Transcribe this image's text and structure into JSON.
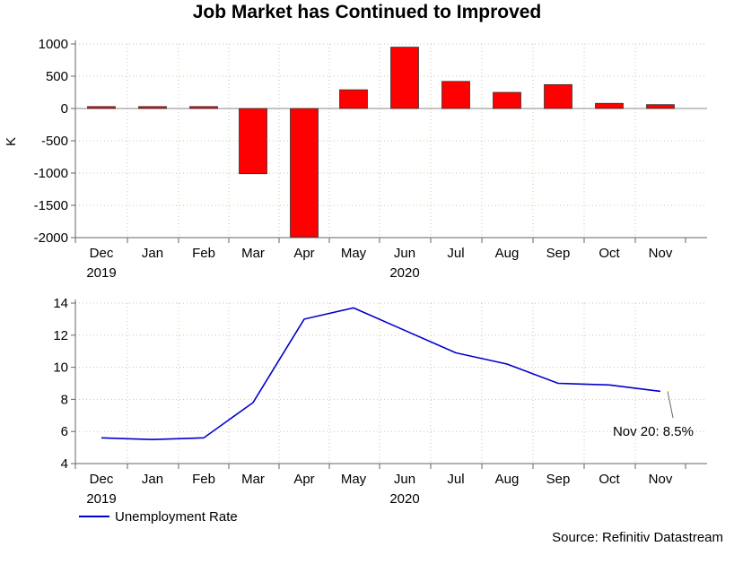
{
  "title": "Job Market has Continued to Improved",
  "source": "Source: Refinitiv Datastream",
  "colors": {
    "bar": "#ff0000",
    "bar_edge": "#333333",
    "line": "#0000cc",
    "grid": "#c8c8a0"
  },
  "chart_data": [
    {
      "type": "bar",
      "categories": [
        "Dec",
        "Jan",
        "Feb",
        "Mar",
        "Apr",
        "May",
        "Jun",
        "Jul",
        "Aug",
        "Sep",
        "Oct",
        "Nov"
      ],
      "year_labels": [
        {
          "category": "Dec",
          "text": "2019"
        },
        {
          "category": "Jun",
          "text": "2020"
        }
      ],
      "values": [
        30,
        30,
        30,
        -1010,
        -1990,
        290,
        950,
        420,
        250,
        370,
        80,
        60
      ],
      "ylabel": "K",
      "ylim": [
        -2000,
        1000
      ],
      "yticks": [
        1000,
        500,
        0,
        -500,
        -1000,
        -1500,
        -2000
      ],
      "grid": true
    },
    {
      "type": "line",
      "categories": [
        "Dec",
        "Jan",
        "Feb",
        "Mar",
        "Apr",
        "May",
        "Jun",
        "Jul",
        "Aug",
        "Sep",
        "Oct",
        "Nov"
      ],
      "year_labels": [
        {
          "category": "Dec",
          "text": "2019"
        },
        {
          "category": "Jun",
          "text": "2020"
        }
      ],
      "series": [
        {
          "name": "Unemployment Rate",
          "values": [
            5.6,
            5.5,
            5.6,
            7.8,
            13.0,
            13.7,
            12.3,
            10.9,
            10.2,
            9.0,
            8.9,
            8.5
          ]
        }
      ],
      "ylim": [
        4,
        14
      ],
      "yticks": [
        4,
        6,
        8,
        10,
        12,
        14
      ],
      "annotation": {
        "category": "Nov",
        "text": "Nov 20: 8.5%"
      },
      "legend": "bottom-left",
      "grid": true
    }
  ]
}
